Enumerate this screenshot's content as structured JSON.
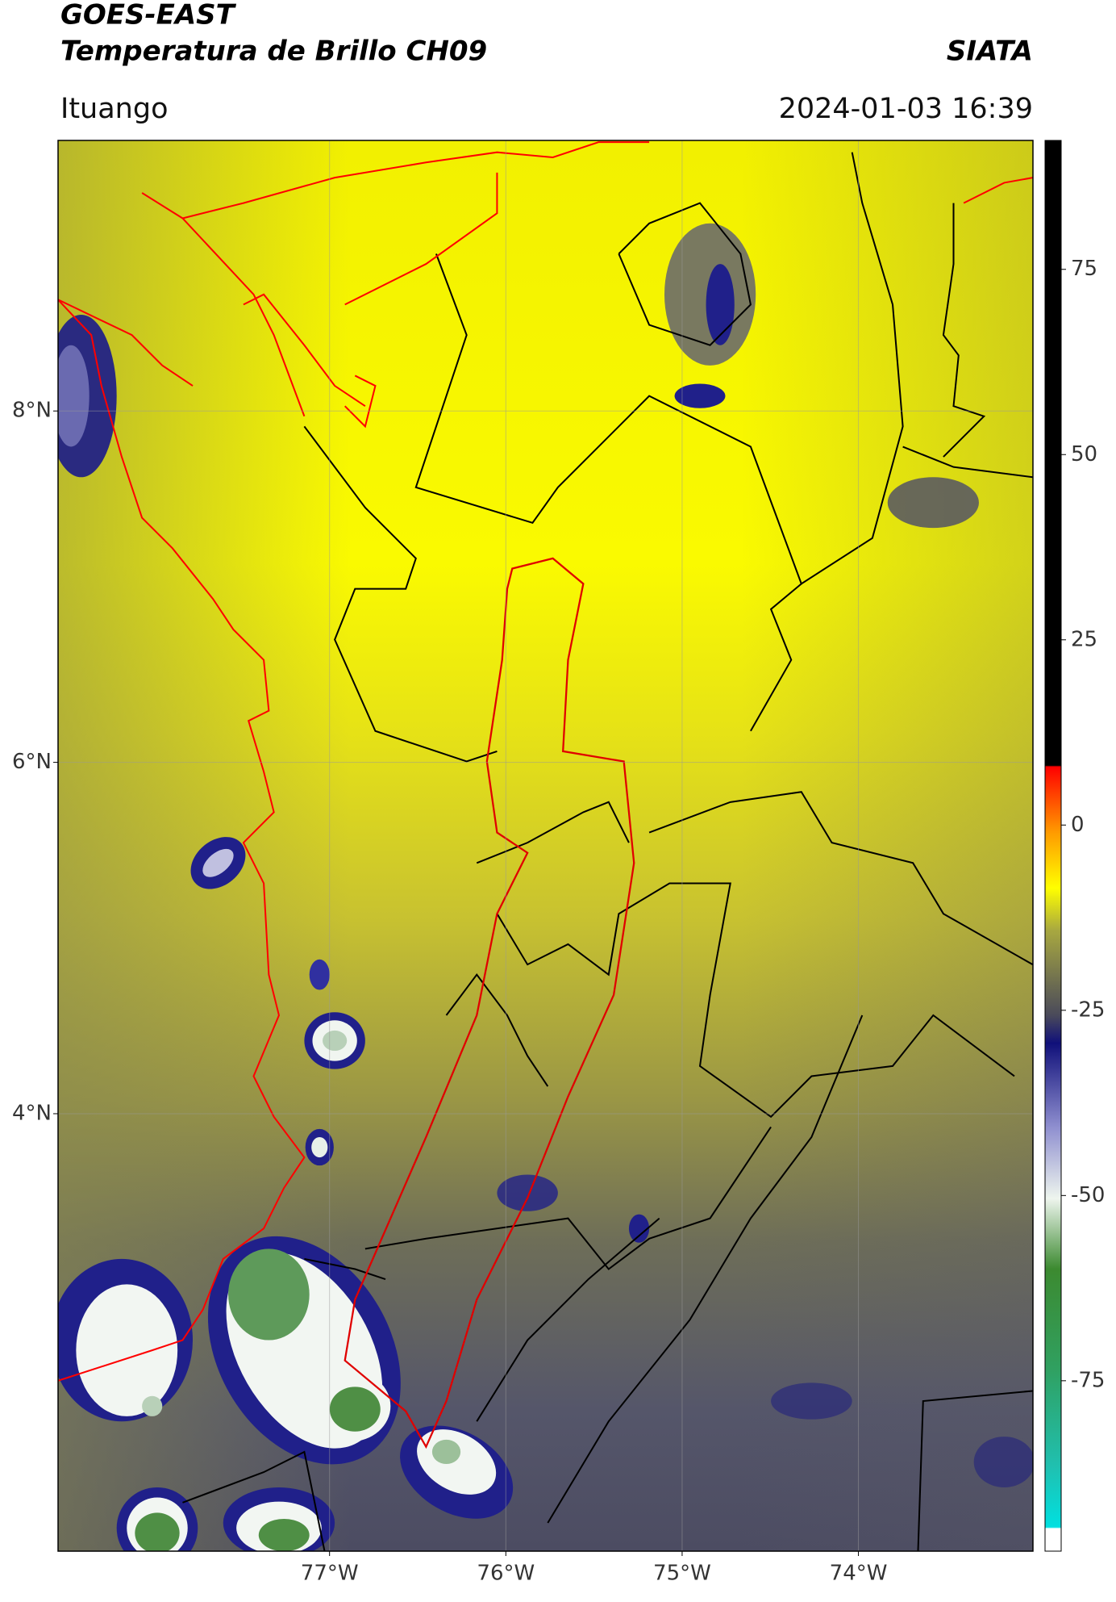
{
  "chart_data": {
    "type": "map",
    "title": "GOES-EAST",
    "subtitle": "Temperatura de Brillo CH09",
    "source": "SIATA",
    "location": "Ituango",
    "datetime": "2024-01-03 16:39",
    "xlim": [
      -78.54,
      -73.01
    ],
    "ylim": [
      1.51,
      9.54
    ],
    "xticks": [
      {
        "value": -77,
        "label": "77°W"
      },
      {
        "value": -76,
        "label": "76°W"
      },
      {
        "value": -75,
        "label": "75°W"
      },
      {
        "value": -74,
        "label": "74°W"
      }
    ],
    "yticks": [
      {
        "value": 4,
        "label": "4°N"
      },
      {
        "value": 6,
        "label": "6°N"
      },
      {
        "value": 8,
        "label": "8°N"
      }
    ],
    "grid": true,
    "colorbar": {
      "clim": [
        -98,
        92.4
      ],
      "ticks": [
        -75,
        -50,
        -25,
        0,
        25,
        50,
        75
      ]
    }
  }
}
